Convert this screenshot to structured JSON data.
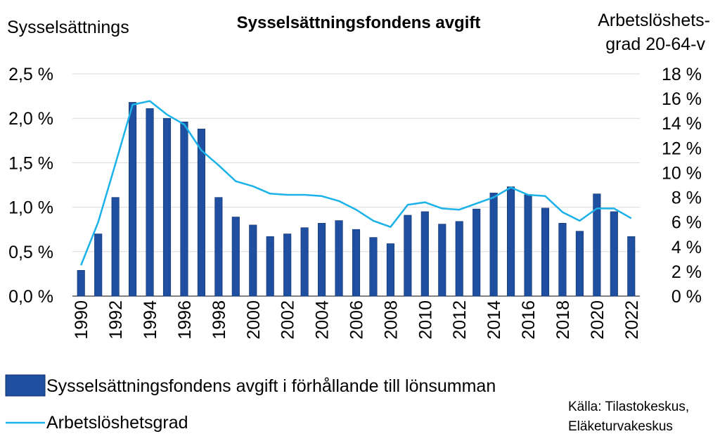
{
  "chart_data": {
    "type": "bar",
    "title": "Sysselsättningsfondens avgift",
    "ylabel_left": "Sysselsättnings",
    "ylabel_right": [
      "Arbetslöshets-",
      "grad 20-64-v"
    ],
    "x": [
      1990,
      1991,
      1992,
      1993,
      1994,
      1995,
      1996,
      1997,
      1998,
      1999,
      2000,
      2001,
      2002,
      2003,
      2004,
      2005,
      2006,
      2007,
      2008,
      2009,
      2010,
      2011,
      2012,
      2013,
      2014,
      2015,
      2016,
      2017,
      2018,
      2019,
      2020,
      2021,
      2022
    ],
    "x_tick_labels": [
      "1990",
      "1992",
      "1994",
      "1996",
      "1998",
      "2000",
      "2002",
      "2004",
      "2006",
      "2008",
      "2010",
      "2012",
      "2014",
      "2016",
      "2018",
      "2020",
      "2022"
    ],
    "y_left_ticks": [
      "0,0 %",
      "0,5 %",
      "1,0 %",
      "1,5 %",
      "2,0 %",
      "2,5 %"
    ],
    "y_right_ticks": [
      "0 %",
      "2 %",
      "4 %",
      "6 %",
      "8 %",
      "10 %",
      "12 %",
      "14 %",
      "16 %",
      "18 %"
    ],
    "ylim_left": [
      0,
      2.5
    ],
    "ylim_right": [
      0,
      18
    ],
    "grid": "horizontal",
    "series": [
      {
        "name": "Sysselsättningsfondens avgift i förhållande till lönsumman",
        "type": "bar",
        "axis": "left",
        "color": "#1f4fa0",
        "values": [
          0.29,
          0.7,
          1.11,
          2.18,
          2.11,
          2.0,
          1.96,
          1.88,
          1.11,
          0.89,
          0.8,
          0.67,
          0.7,
          0.77,
          0.82,
          0.85,
          0.75,
          0.66,
          0.59,
          0.91,
          0.95,
          0.81,
          0.84,
          0.98,
          1.16,
          1.23,
          1.14,
          0.99,
          0.82,
          0.73,
          1.15,
          0.95,
          0.67
        ]
      },
      {
        "name": "Arbetslöshetsgrad",
        "type": "line",
        "axis": "right",
        "color": "#1ab2e8",
        "values": [
          2.5,
          6.0,
          10.7,
          15.5,
          15.8,
          14.7,
          13.9,
          11.8,
          10.6,
          9.3,
          8.9,
          8.3,
          8.2,
          8.2,
          8.1,
          7.7,
          7.0,
          6.1,
          5.6,
          7.4,
          7.6,
          7.1,
          7.0,
          7.5,
          8.0,
          8.8,
          8.2,
          8.1,
          6.8,
          6.1,
          7.1,
          7.1,
          6.3
        ]
      }
    ],
    "legend_position": "bottom-left",
    "source": [
      "Källa: Tilastokeskus,",
      "Eläketurvakeskus"
    ]
  }
}
